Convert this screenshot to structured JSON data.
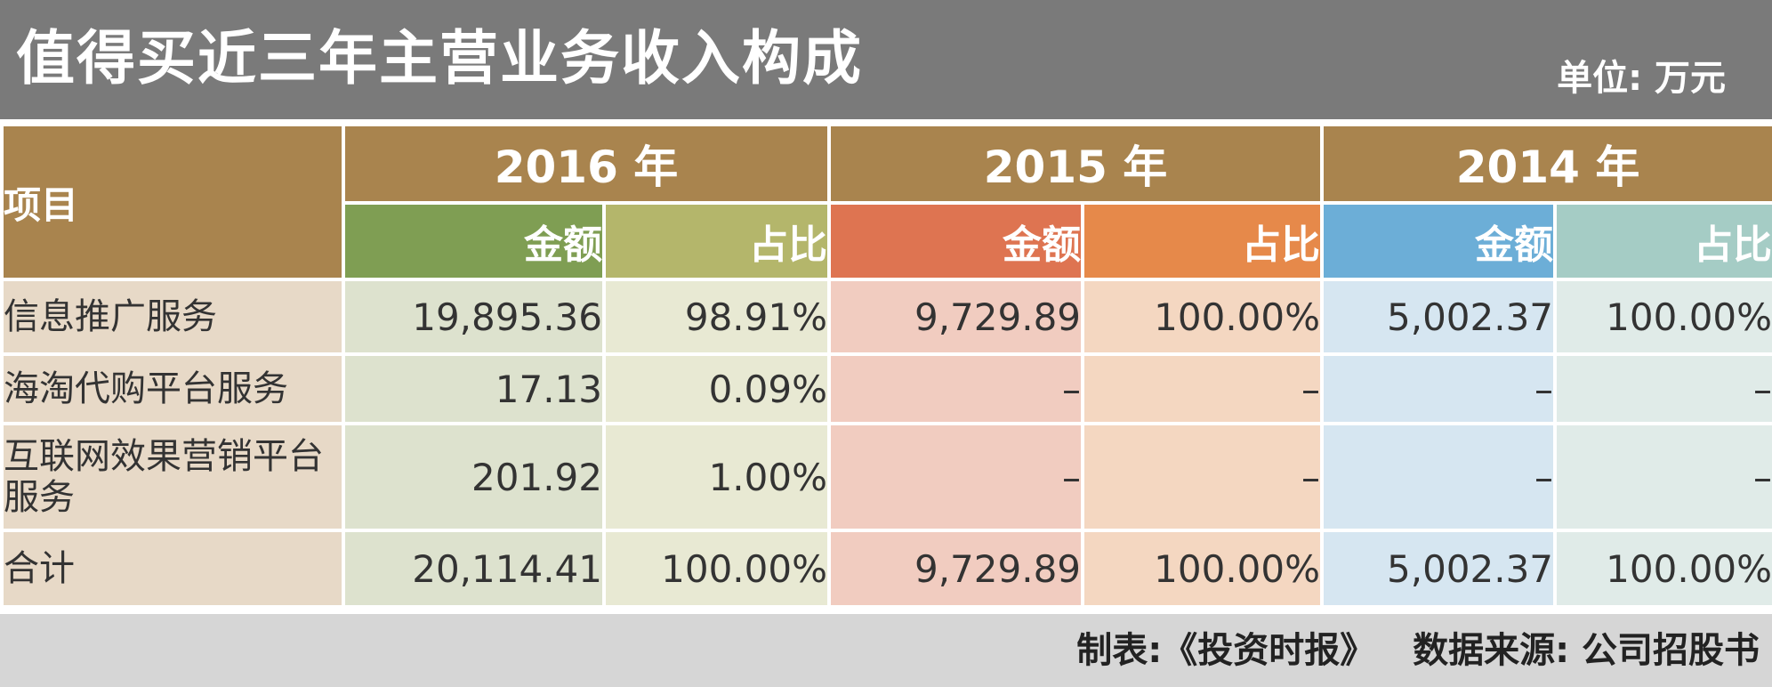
{
  "title": "值得买近三年主营业务收入构成",
  "unit": "单位: 万元",
  "table": {
    "item_header": "项目",
    "years": [
      "2016 年",
      "2015 年",
      "2014 年"
    ],
    "sub_headers": [
      "金额",
      "占比"
    ],
    "rows": [
      {
        "label": "信息推广服务",
        "cells": [
          "19,895.36",
          "98.91%",
          "9,729.89",
          "100.00%",
          "5,002.37",
          "100.00%"
        ]
      },
      {
        "label": "海淘代购平台服务",
        "cells": [
          "17.13",
          "0.09%",
          "–",
          "–",
          "–",
          "–"
        ]
      },
      {
        "label": "互联网效果营销平台服务",
        "cells": [
          "201.92",
          "1.00%",
          "–",
          "–",
          "–",
          "–"
        ]
      },
      {
        "label": "合计",
        "cells": [
          "20,114.41",
          "100.00%",
          "9,729.89",
          "100.00%",
          "5,002.37",
          "100.00%"
        ]
      }
    ]
  },
  "footer": {
    "maker": "制表:《投资时报》",
    "source": "数据来源: 公司招股书"
  },
  "colors": {
    "title_bg": "#7a7a7a",
    "year_header_bg": "#a9844e",
    "label_bg": "#e7d9c7",
    "2016_amount_header": "#7f9e53",
    "2016_share_header": "#b4b66b",
    "2015_amount_header": "#de7451",
    "2015_share_header": "#e6894a",
    "2014_amount_header": "#6caed7",
    "2014_share_header": "#a5ccc5",
    "footer_bg": "#d6d6d6"
  }
}
